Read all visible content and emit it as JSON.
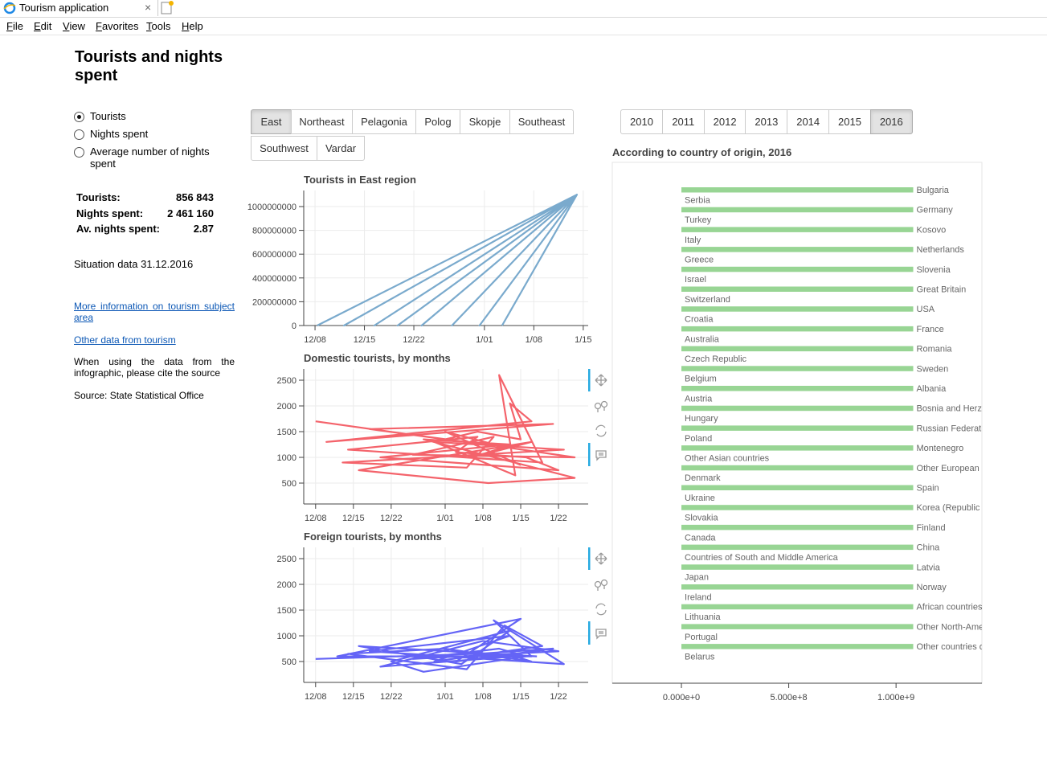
{
  "browser": {
    "tab_title": "Tourism application",
    "menu": [
      "File",
      "Edit",
      "View",
      "Favorites",
      "Tools",
      "Help"
    ]
  },
  "sidebar": {
    "title": "Tourists and nights spent",
    "options": [
      "Tourists",
      "Nights spent",
      "Average number of nights spent"
    ],
    "selected_option": 0,
    "stats": [
      {
        "label": "Tourists:",
        "value": "856 843"
      },
      {
        "label": "Nights spent:",
        "value": "2 461 160"
      },
      {
        "label": "Av. nights spent:",
        "value": "2.87"
      }
    ],
    "situation": "Situation data 31.12.2016",
    "links": [
      "More information on tourism subject area",
      "Other data from tourism"
    ],
    "note": "When using the data from the infographic, please cite the source",
    "source": "Source: State Statistical Office"
  },
  "regions": {
    "buttons": [
      "East",
      "Northeast",
      "Pelagonia",
      "Polog",
      "Skopje",
      "Southeast",
      "Southwest",
      "Vardar"
    ],
    "active": 0
  },
  "years": {
    "buttons": [
      "2010",
      "2011",
      "2012",
      "2013",
      "2014",
      "2015",
      "2016"
    ],
    "active": 6
  },
  "charts": [
    {
      "type": "line",
      "title": "Tourists in East region",
      "xlim": [
        -1.6,
        38.7
      ],
      "ylim": [
        0,
        1135000000
      ],
      "grid": true,
      "xticks": [
        {
          "value": 0,
          "label": "12/08"
        },
        {
          "value": 7,
          "label": "12/15"
        },
        {
          "value": 14,
          "label": "12/22"
        },
        {
          "value": 24,
          "label": "1/01"
        },
        {
          "value": 31,
          "label": "1/08"
        },
        {
          "value": 38,
          "label": "1/15"
        }
      ],
      "yticks": [
        0,
        200000000,
        400000000,
        600000000,
        800000000,
        1000000000
      ],
      "series": [
        {
          "color": "#7aaacd",
          "x": [
            0.3,
            37.1,
            4.1,
            37.1,
            8.4,
            37.1,
            11.7,
            37.1,
            15.1,
            37.1,
            19.4,
            37.1,
            23.3,
            37.1,
            26.5
          ],
          "values": [
            0,
            1100000000,
            0,
            1100000000,
            0,
            1100000000,
            0,
            1100000000,
            0,
            1100000000,
            0,
            1100000000,
            0,
            1100000000,
            0
          ]
        }
      ]
    },
    {
      "type": "line",
      "title": "Domestic tourists, by months",
      "xlim": [
        -2.2,
        50.5
      ],
      "ylim": [
        94,
        2719
      ],
      "grid": true,
      "xticks": [
        {
          "value": 0,
          "label": "12/08"
        },
        {
          "value": 7,
          "label": "12/15"
        },
        {
          "value": 14,
          "label": "12/22"
        },
        {
          "value": 24,
          "label": "1/01"
        },
        {
          "value": 31,
          "label": "1/08"
        },
        {
          "value": 38,
          "label": "1/15"
        },
        {
          "value": 45,
          "label": "1/22"
        }
      ],
      "yticks": [
        500,
        1000,
        1500,
        2000,
        2500
      ],
      "series": [
        {
          "color": "#f4636b",
          "x": [
            0,
            24,
            30,
            38,
            36,
            40,
            2,
            44,
            10,
            35,
            48,
            18,
            33,
            28,
            5,
            46,
            22,
            37,
            34,
            42,
            6,
            30,
            26,
            39,
            45,
            12,
            36,
            20,
            48,
            32,
            8,
            40,
            29,
            35,
            24,
            38
          ],
          "values": [
            1700,
            1350,
            1500,
            1350,
            2050,
            1700,
            1300,
            1650,
            1550,
            1200,
            1000,
            1050,
            1400,
            800,
            900,
            1150,
            1300,
            650,
            2600,
            900,
            1150,
            1400,
            1100,
            1000,
            750,
            1000,
            1250,
            1350,
            600,
            500,
            750,
            1300,
            1000,
            1200,
            1500,
            850
          ]
        }
      ]
    },
    {
      "type": "line",
      "title": "Foreign tourists, by months",
      "xlim": [
        -2.2,
        50.5
      ],
      "ylim": [
        94,
        2719
      ],
      "grid": true,
      "xticks": [
        {
          "value": 0,
          "label": "12/08"
        },
        {
          "value": 7,
          "label": "12/15"
        },
        {
          "value": 14,
          "label": "12/22"
        },
        {
          "value": 24,
          "label": "1/01"
        },
        {
          "value": 31,
          "label": "1/08"
        },
        {
          "value": 38,
          "label": "1/15"
        },
        {
          "value": 45,
          "label": "1/22"
        }
      ],
      "yticks": [
        500,
        1000,
        1500,
        2000,
        2500
      ],
      "series": [
        {
          "color": "#6464f6",
          "x": [
            0,
            30,
            44,
            26,
            38,
            4,
            40,
            33,
            46,
            10,
            36,
            22,
            42,
            35,
            28,
            6,
            24,
            40,
            37,
            12,
            31,
            45,
            18,
            34,
            39,
            20,
            14,
            36,
            27,
            8,
            41
          ],
          "values": [
            550,
            650,
            750,
            500,
            1330,
            600,
            600,
            1300,
            450,
            700,
            1000,
            500,
            800,
            1200,
            350,
            650,
            750,
            500,
            600,
            400,
            900,
            700,
            550,
            750,
            600,
            300,
            500,
            1100,
            450,
            800,
            600
          ]
        }
      ]
    },
    {
      "type": "hbar",
      "title": "According to country of origin, 2016",
      "color": "#98d594",
      "xlim": [
        -322000000,
        1400000000
      ],
      "xticks": [
        {
          "value": 0,
          "label": "0.000e+0"
        },
        {
          "value": 500000000,
          "label": "5.000e+8"
        },
        {
          "value": 1000000000,
          "label": "1.000e+9"
        }
      ],
      "categories": [
        "Bulgaria",
        "Serbia",
        "Germany",
        "Turkey",
        "Kosovo",
        "Italy",
        "Netherlands",
        "Greece",
        "Slovenia",
        "Israel",
        "Great Britain",
        "Switzerland",
        "USA",
        "Croatia",
        "France",
        "Australia",
        "Romania",
        "Czech Republic",
        "Sweden",
        "Belgium",
        "Albania",
        "Austria",
        "Bosnia and Herze",
        "Hungary",
        "Russian Federati",
        "Poland",
        "Montenegro",
        "Other Asian countries",
        "Other European c",
        "Denmark",
        "Spain",
        "Ukraine",
        "Korea (Republic o",
        "Slovakia",
        "Finland",
        "Canada",
        "China",
        "Countries of South and Middle America",
        "Latvia",
        "Japan",
        "Norway",
        "Ireland",
        "African countries",
        "Lithuania",
        "Other North-Amer",
        "Portugal",
        "Other countries o",
        "Belarus"
      ],
      "values": [
        1080000000,
        0,
        1080000000,
        0,
        1080000000,
        0,
        1080000000,
        0,
        1080000000,
        0,
        1080000000,
        0,
        1080000000,
        0,
        1080000000,
        0,
        1080000000,
        0,
        1080000000,
        0,
        1080000000,
        0,
        1080000000,
        0,
        1080000000,
        0,
        1080000000,
        0,
        1080000000,
        0,
        1080000000,
        0,
        1080000000,
        0,
        1080000000,
        0,
        1080000000,
        0,
        1080000000,
        0,
        1080000000,
        0,
        1080000000,
        0,
        1080000000,
        0,
        1080000000,
        0
      ]
    }
  ]
}
